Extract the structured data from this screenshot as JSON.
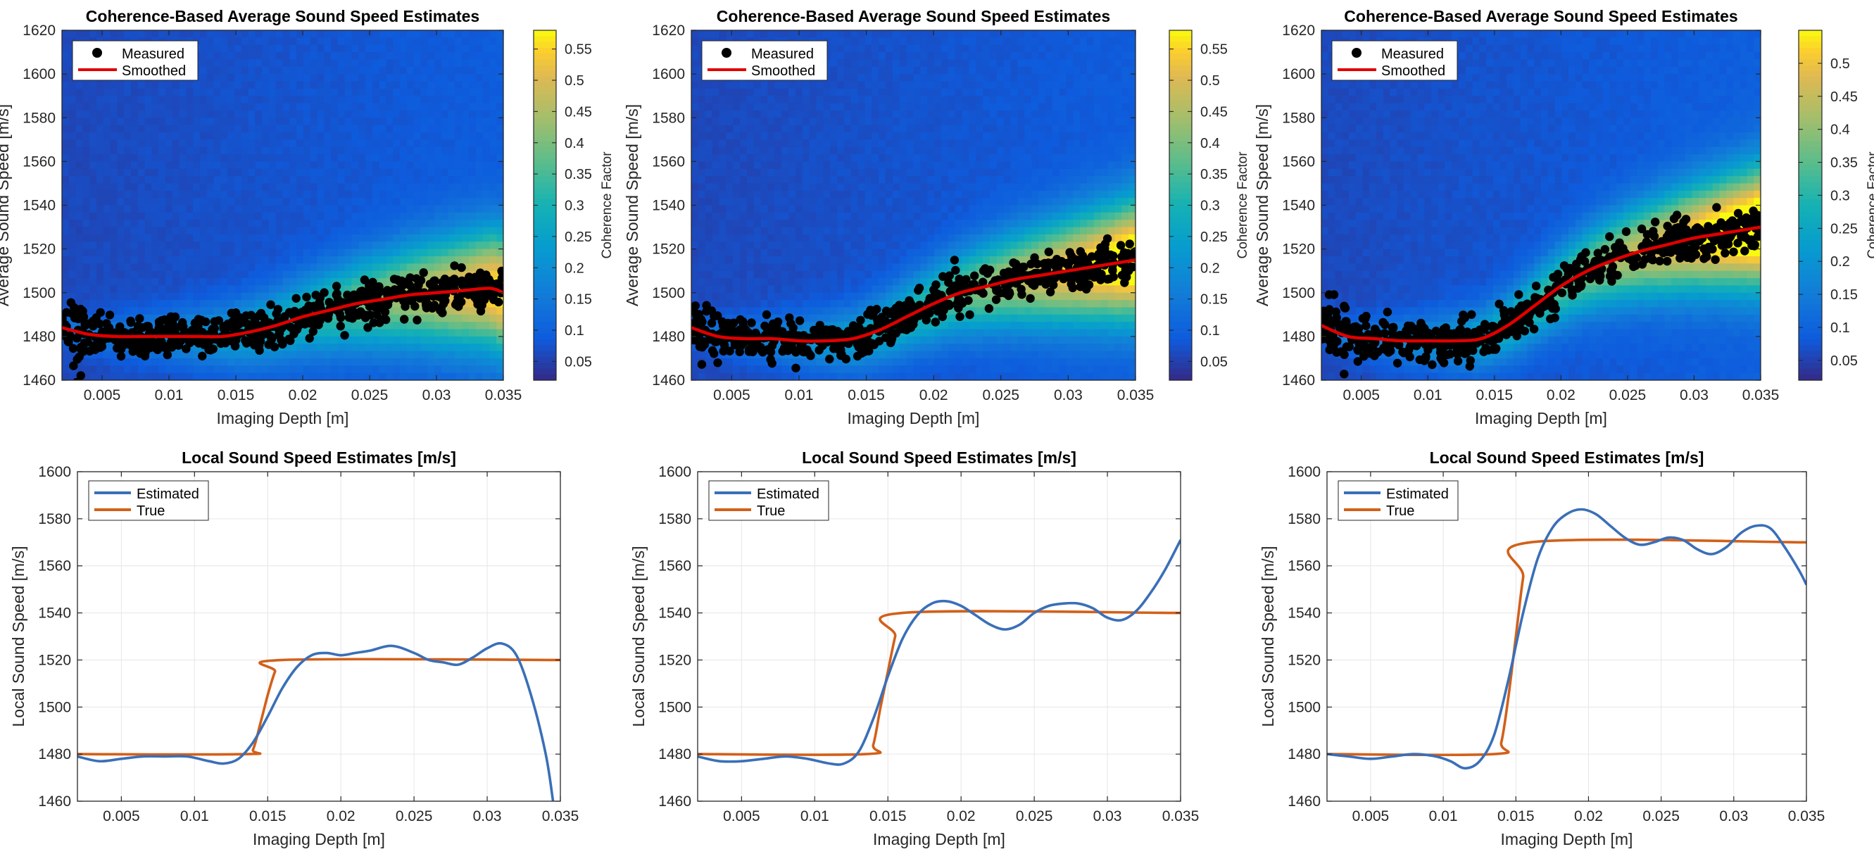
{
  "chart_data": [
    {
      "type": "scatter",
      "panel": "top-left",
      "title": "Coherence-Based Average Sound Speed Estimates",
      "xlabel": "Imaging Depth [m]",
      "ylabel": "Average Sound Speed [m/s]",
      "xlim": [
        0.002,
        0.035
      ],
      "ylim": [
        1460,
        1620
      ],
      "xticks": [
        0.005,
        0.01,
        0.015,
        0.02,
        0.025,
        0.03,
        0.035
      ],
      "xtick_labels": [
        "0.005",
        "0.01",
        "0.015",
        "0.02",
        "0.025",
        "0.03",
        "0.035"
      ],
      "yticks": [
        1460,
        1480,
        1500,
        1520,
        1540,
        1560,
        1580,
        1600,
        1620
      ],
      "ytick_labels": [
        "1460",
        "1480",
        "1500",
        "1520",
        "1540",
        "1560",
        "1580",
        "1600",
        "1620"
      ],
      "legend": {
        "placement": "top-left",
        "entries": [
          "Measured",
          "Smoothed"
        ]
      },
      "colorbar": {
        "label": "Coherence Factor",
        "range": [
          0.02,
          0.58
        ],
        "ticks": [
          0.05,
          0.1,
          0.15,
          0.2,
          0.25,
          0.3,
          0.35,
          0.4,
          0.45,
          0.5,
          0.55
        ],
        "tick_labels": [
          "0.05",
          "0.1",
          "0.15",
          "0.2",
          "0.25",
          "0.3",
          "0.35",
          "0.4",
          "0.45",
          "0.5",
          "0.55"
        ],
        "colormap": "parula"
      },
      "series": [
        {
          "name": "Smoothed",
          "color": "#e00000",
          "x": [
            0.002,
            0.004,
            0.006,
            0.008,
            0.01,
            0.012,
            0.014,
            0.016,
            0.018,
            0.02,
            0.022,
            0.024,
            0.026,
            0.028,
            0.03,
            0.032,
            0.034,
            0.035
          ],
          "y": [
            1484,
            1481,
            1480,
            1480,
            1480,
            1480,
            1480,
            1482,
            1485,
            1489,
            1492,
            1495,
            1497,
            1499,
            1500,
            1501,
            1502,
            1500
          ]
        },
        {
          "name": "Measured",
          "color": "#000000",
          "note_spread": "dense scatter of about ±7 m/s around the smoothed curve"
        }
      ]
    },
    {
      "type": "scatter",
      "panel": "top-middle",
      "title": "Coherence-Based Average Sound Speed Estimates",
      "xlabel": "Imaging Depth [m]",
      "ylabel": "Average Sound Speed [m/s]",
      "xlim": [
        0.002,
        0.035
      ],
      "ylim": [
        1460,
        1620
      ],
      "xticks": [
        0.005,
        0.01,
        0.015,
        0.02,
        0.025,
        0.03,
        0.035
      ],
      "xtick_labels": [
        "0.005",
        "0.01",
        "0.015",
        "0.02",
        "0.025",
        "0.03",
        "0.035"
      ],
      "yticks": [
        1460,
        1480,
        1500,
        1520,
        1540,
        1560,
        1580,
        1600,
        1620
      ],
      "ytick_labels": [
        "1460",
        "1480",
        "1500",
        "1520",
        "1540",
        "1560",
        "1580",
        "1600",
        "1620"
      ],
      "legend": {
        "placement": "top-left",
        "entries": [
          "Measured",
          "Smoothed"
        ]
      },
      "colorbar": {
        "label": "Coherence Factor",
        "range": [
          0.02,
          0.58
        ],
        "ticks": [
          0.05,
          0.1,
          0.15,
          0.2,
          0.25,
          0.3,
          0.35,
          0.4,
          0.45,
          0.5,
          0.55
        ],
        "tick_labels": [
          "0.05",
          "0.1",
          "0.15",
          "0.2",
          "0.25",
          "0.3",
          "0.35",
          "0.4",
          "0.45",
          "0.5",
          "0.55"
        ],
        "colormap": "parula"
      },
      "series": [
        {
          "name": "Smoothed",
          "color": "#e00000",
          "x": [
            0.002,
            0.004,
            0.006,
            0.008,
            0.01,
            0.012,
            0.014,
            0.016,
            0.018,
            0.02,
            0.022,
            0.024,
            0.026,
            0.028,
            0.03,
            0.032,
            0.034,
            0.035
          ],
          "y": [
            1484,
            1480,
            1479,
            1479,
            1478,
            1478,
            1479,
            1483,
            1489,
            1495,
            1500,
            1503,
            1506,
            1508,
            1510,
            1512,
            1514,
            1515
          ]
        },
        {
          "name": "Measured",
          "color": "#000000",
          "note_spread": "dense scatter of about ±8 m/s around the smoothed curve"
        }
      ]
    },
    {
      "type": "scatter",
      "panel": "top-right",
      "title": "Coherence-Based Average Sound Speed Estimates",
      "xlabel": "Imaging Depth [m]",
      "ylabel": "Average Sound Speed [m/s]",
      "xlim": [
        0.002,
        0.035
      ],
      "ylim": [
        1460,
        1620
      ],
      "xticks": [
        0.005,
        0.01,
        0.015,
        0.02,
        0.025,
        0.03,
        0.035
      ],
      "xtick_labels": [
        "0.005",
        "0.01",
        "0.015",
        "0.02",
        "0.025",
        "0.03",
        "0.035"
      ],
      "yticks": [
        1460,
        1480,
        1500,
        1520,
        1540,
        1560,
        1580,
        1600,
        1620
      ],
      "ytick_labels": [
        "1460",
        "1480",
        "1500",
        "1520",
        "1540",
        "1560",
        "1580",
        "1600",
        "1620"
      ],
      "legend": {
        "placement": "top-left",
        "entries": [
          "Measured",
          "Smoothed"
        ]
      },
      "colorbar": {
        "label": "Coherence Factor",
        "range": [
          0.02,
          0.55
        ],
        "ticks": [
          0.05,
          0.1,
          0.15,
          0.2,
          0.25,
          0.3,
          0.35,
          0.4,
          0.45,
          0.5
        ],
        "tick_labels": [
          "0.05",
          "0.1",
          "0.15",
          "0.2",
          "0.25",
          "0.3",
          "0.35",
          "0.4",
          "0.45",
          "0.5"
        ],
        "colormap": "parula"
      },
      "series": [
        {
          "name": "Smoothed",
          "color": "#e00000",
          "x": [
            0.002,
            0.004,
            0.006,
            0.008,
            0.01,
            0.012,
            0.014,
            0.016,
            0.018,
            0.02,
            0.022,
            0.024,
            0.026,
            0.028,
            0.03,
            0.032,
            0.034,
            0.035
          ],
          "y": [
            1485,
            1480,
            1479,
            1478,
            1478,
            1478,
            1479,
            1485,
            1494,
            1503,
            1510,
            1515,
            1519,
            1522,
            1525,
            1527,
            1529,
            1530
          ]
        },
        {
          "name": "Measured",
          "color": "#000000",
          "note_spread": "dense scatter of about ±8 m/s around the smoothed curve"
        }
      ]
    },
    {
      "type": "line",
      "panel": "bottom-left",
      "title": "Local Sound Speed Estimates [m/s]",
      "xlabel": "Imaging Depth [m]",
      "ylabel": "Local Sound Speed [m/s]",
      "xlim": [
        0.002,
        0.035
      ],
      "ylim": [
        1460,
        1600
      ],
      "xticks": [
        0.005,
        0.01,
        0.015,
        0.02,
        0.025,
        0.03,
        0.035
      ],
      "xtick_labels": [
        "0.005",
        "0.01",
        "0.015",
        "0.02",
        "0.025",
        "0.03",
        "0.035"
      ],
      "yticks": [
        1460,
        1480,
        1500,
        1520,
        1540,
        1560,
        1580,
        1600
      ],
      "ytick_labels": [
        "1460",
        "1480",
        "1500",
        "1520",
        "1540",
        "1560",
        "1580",
        "1600"
      ],
      "legend": {
        "placement": "top-left",
        "entries": [
          "Estimated",
          "True"
        ]
      },
      "series": [
        {
          "name": "Estimated",
          "color": "#3a6fb8",
          "x": [
            0.002,
            0.0035,
            0.005,
            0.0065,
            0.008,
            0.0095,
            0.011,
            0.012,
            0.013,
            0.014,
            0.015,
            0.016,
            0.017,
            0.018,
            0.019,
            0.02,
            0.021,
            0.022,
            0.0235,
            0.025,
            0.026,
            0.027,
            0.028,
            0.029,
            0.03,
            0.031,
            0.032,
            0.033,
            0.034,
            0.0345
          ],
          "y": [
            1479,
            1477,
            1478,
            1479,
            1479,
            1479,
            1477,
            1476,
            1478,
            1485,
            1496,
            1508,
            1517,
            1522,
            1523,
            1522,
            1523,
            1524,
            1526,
            1523,
            1520,
            1519,
            1518,
            1521,
            1525,
            1527,
            1522,
            1505,
            1480,
            1460
          ]
        },
        {
          "name": "True",
          "color": "#d2601a",
          "x": [
            0.002,
            0.0135,
            0.014,
            0.0145,
            0.015,
            0.0155,
            0.016,
            0.035
          ],
          "y": [
            1480,
            1480,
            1482,
            1493,
            1505,
            1515,
            1520,
            1520
          ]
        }
      ]
    },
    {
      "type": "line",
      "panel": "bottom-middle",
      "title": "Local Sound Speed Estimates [m/s]",
      "xlabel": "Imaging Depth [m]",
      "ylabel": "Local Sound Speed [m/s]",
      "xlim": [
        0.002,
        0.035
      ],
      "ylim": [
        1460,
        1600
      ],
      "xticks": [
        0.005,
        0.01,
        0.015,
        0.02,
        0.025,
        0.03,
        0.035
      ],
      "xtick_labels": [
        "0.005",
        "0.01",
        "0.015",
        "0.02",
        "0.025",
        "0.03",
        "0.035"
      ],
      "yticks": [
        1460,
        1480,
        1500,
        1520,
        1540,
        1560,
        1580,
        1600
      ],
      "ytick_labels": [
        "1460",
        "1480",
        "1500",
        "1520",
        "1540",
        "1560",
        "1580",
        "1600"
      ],
      "legend": {
        "placement": "top-left",
        "entries": [
          "Estimated",
          "True"
        ]
      },
      "series": [
        {
          "name": "Estimated",
          "color": "#3a6fb8",
          "x": [
            0.002,
            0.0035,
            0.005,
            0.0065,
            0.008,
            0.0095,
            0.011,
            0.012,
            0.013,
            0.014,
            0.015,
            0.016,
            0.017,
            0.018,
            0.019,
            0.02,
            0.021,
            0.022,
            0.023,
            0.024,
            0.025,
            0.026,
            0.027,
            0.028,
            0.029,
            0.03,
            0.031,
            0.032,
            0.033,
            0.034,
            0.035
          ],
          "y": [
            1479,
            1477,
            1477,
            1478,
            1479,
            1478,
            1476,
            1476,
            1481,
            1495,
            1513,
            1529,
            1539,
            1544,
            1545,
            1543,
            1539,
            1535,
            1533,
            1535,
            1540,
            1543,
            1544,
            1544,
            1542,
            1538,
            1537,
            1541,
            1549,
            1559,
            1571
          ]
        },
        {
          "name": "True",
          "color": "#d2601a",
          "x": [
            0.002,
            0.0135,
            0.014,
            0.0145,
            0.015,
            0.0155,
            0.016,
            0.035
          ],
          "y": [
            1480,
            1480,
            1484,
            1500,
            1515,
            1530,
            1540,
            1540
          ]
        }
      ]
    },
    {
      "type": "line",
      "panel": "bottom-right",
      "title": "Local Sound Speed Estimates [m/s]",
      "xlabel": "Imaging Depth [m]",
      "ylabel": "Local Sound Speed [m/s]",
      "xlim": [
        0.002,
        0.035
      ],
      "ylim": [
        1460,
        1600
      ],
      "xticks": [
        0.005,
        0.01,
        0.015,
        0.02,
        0.025,
        0.03,
        0.035
      ],
      "xtick_labels": [
        "0.005",
        "0.01",
        "0.015",
        "0.02",
        "0.025",
        "0.03",
        "0.035"
      ],
      "yticks": [
        1460,
        1480,
        1500,
        1520,
        1540,
        1560,
        1580,
        1600
      ],
      "ytick_labels": [
        "1460",
        "1480",
        "1500",
        "1520",
        "1540",
        "1560",
        "1580",
        "1600"
      ],
      "legend": {
        "placement": "top-left",
        "entries": [
          "Estimated",
          "True"
        ]
      },
      "series": [
        {
          "name": "Estimated",
          "color": "#3a6fb8",
          "x": [
            0.002,
            0.0035,
            0.005,
            0.0065,
            0.008,
            0.0095,
            0.0105,
            0.0115,
            0.0125,
            0.0135,
            0.0145,
            0.0155,
            0.0165,
            0.0175,
            0.0185,
            0.0195,
            0.0205,
            0.0215,
            0.0225,
            0.0235,
            0.0245,
            0.0255,
            0.0265,
            0.0275,
            0.0285,
            0.0295,
            0.0305,
            0.0315,
            0.0325,
            0.0335,
            0.0345,
            0.035
          ],
          "y": [
            1480,
            1479,
            1478,
            1479,
            1480,
            1479,
            1477,
            1474,
            1477,
            1488,
            1512,
            1540,
            1563,
            1576,
            1582,
            1584,
            1582,
            1577,
            1572,
            1569,
            1570,
            1572,
            1571,
            1567,
            1565,
            1568,
            1574,
            1577,
            1576,
            1568,
            1558,
            1552
          ]
        },
        {
          "name": "True",
          "color": "#d2601a",
          "x": [
            0.002,
            0.0135,
            0.014,
            0.0145,
            0.015,
            0.0155,
            0.016,
            0.035
          ],
          "y": [
            1480,
            1480,
            1485,
            1505,
            1530,
            1555,
            1570,
            1570
          ]
        }
      ]
    }
  ]
}
